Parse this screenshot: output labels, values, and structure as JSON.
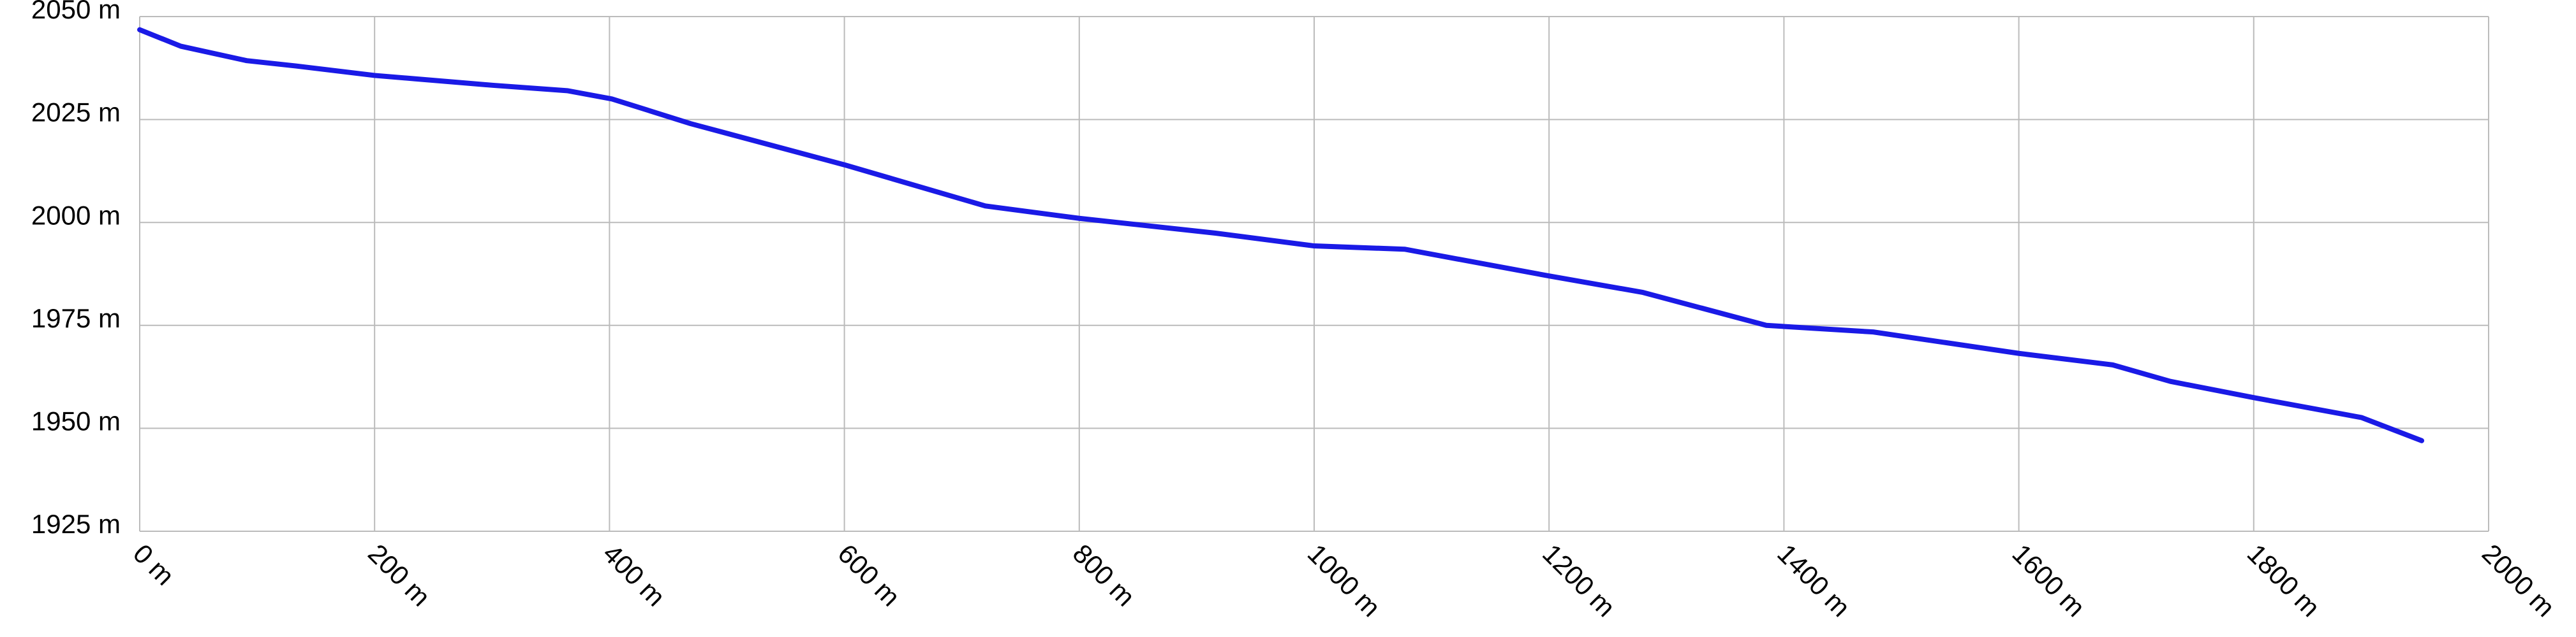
{
  "chart_data": {
    "type": "line",
    "x": [
      0,
      35,
      91,
      133,
      200,
      301,
      364,
      402,
      469,
      600,
      720,
      800,
      916,
      1000,
      1077,
      1200,
      1280,
      1385,
      1476,
      1600,
      1680,
      1729,
      1801,
      1892,
      1943
    ],
    "series": [
      {
        "color": "#1a1ae6",
        "values": [
          2046.8,
          2042.8,
          2039.3,
          2038,
          2035.7,
          2033.3,
          2032,
          2030,
          2024,
          2014,
          2004,
          2001,
          1997.4,
          1994.3,
          1993.5,
          1987,
          1983,
          1975,
          1973.4,
          1968.2,
          1965.4,
          1961.4,
          1957.4,
          1952.6,
          1947
        ]
      }
    ],
    "xlim": [
      0,
      2000
    ],
    "xticks": [
      {
        "value": 0,
        "label": "0 m"
      },
      {
        "value": 200,
        "label": "200 m"
      },
      {
        "value": 400,
        "label": "400 m"
      },
      {
        "value": 600,
        "label": "600 m"
      },
      {
        "value": 800,
        "label": "800 m"
      },
      {
        "value": 1000,
        "label": "1000 m"
      },
      {
        "value": 1200,
        "label": "1200 m"
      },
      {
        "value": 1400,
        "label": "1400 m"
      },
      {
        "value": 1600,
        "label": "1600 m"
      },
      {
        "value": 1800,
        "label": "1800 m"
      },
      {
        "value": 2000,
        "label": "2000 m"
      }
    ],
    "ylim": [
      1925,
      2050
    ],
    "yticks": [
      {
        "value": 1925,
        "label": "1925 m"
      },
      {
        "value": 1950,
        "label": "1950 m"
      },
      {
        "value": 1975,
        "label": "1975 m"
      },
      {
        "value": 2000,
        "label": "2000 m"
      },
      {
        "value": 2025,
        "label": "2025 m"
      },
      {
        "value": 2050,
        "label": "2050 m"
      }
    ],
    "grid": true
  }
}
